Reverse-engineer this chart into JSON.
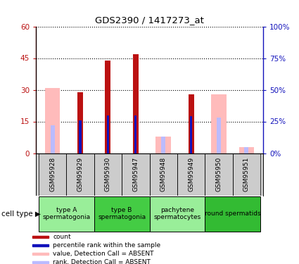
{
  "title": "GDS2390 / 1417273_at",
  "samples": [
    "GSM95928",
    "GSM95929",
    "GSM95930",
    "GSM95947",
    "GSM95948",
    "GSM95949",
    "GSM95950",
    "GSM95951"
  ],
  "count_values": [
    null,
    29,
    44,
    47,
    null,
    28,
    null,
    null
  ],
  "rank_values": [
    null,
    26,
    30,
    30,
    null,
    29,
    null,
    null
  ],
  "absent_value_values": [
    31,
    null,
    null,
    null,
    8,
    null,
    28,
    3
  ],
  "absent_rank_values": [
    22,
    null,
    null,
    null,
    13,
    null,
    28,
    5
  ],
  "ylim_left": [
    0,
    60
  ],
  "ylim_right": [
    0,
    100
  ],
  "yticks_left": [
    0,
    15,
    30,
    45,
    60
  ],
  "yticks_right": [
    0,
    25,
    50,
    75,
    100
  ],
  "ytick_labels_left": [
    "0",
    "15",
    "30",
    "45",
    "60"
  ],
  "ytick_labels_right": [
    "0%",
    "25%",
    "50%",
    "75%",
    "100%"
  ],
  "cell_types": [
    {
      "label": "type A\nspermatogonia",
      "samples": [
        0,
        1
      ],
      "color": "#99ee99"
    },
    {
      "label": "type B\nspermatogonia",
      "samples": [
        2,
        3
      ],
      "color": "#44cc44"
    },
    {
      "label": "pachytene\nspermatocytes",
      "samples": [
        4,
        5
      ],
      "color": "#99ee99"
    },
    {
      "label": "round spermatids",
      "samples": [
        6,
        7
      ],
      "color": "#33bb33"
    }
  ],
  "count_color": "#bb1111",
  "rank_color": "#1111bb",
  "absent_value_color": "#ffbbbb",
  "absent_rank_color": "#bbbbff",
  "bg_color": "#ffffff",
  "plot_bg_color": "#ffffff",
  "label_area_color": "#cccccc",
  "legend_items": [
    {
      "label": "count",
      "color": "#bb1111"
    },
    {
      "label": "percentile rank within the sample",
      "color": "#1111bb"
    },
    {
      "label": "value, Detection Call = ABSENT",
      "color": "#ffbbbb"
    },
    {
      "label": "rank, Detection Call = ABSENT",
      "color": "#bbbbff"
    }
  ]
}
